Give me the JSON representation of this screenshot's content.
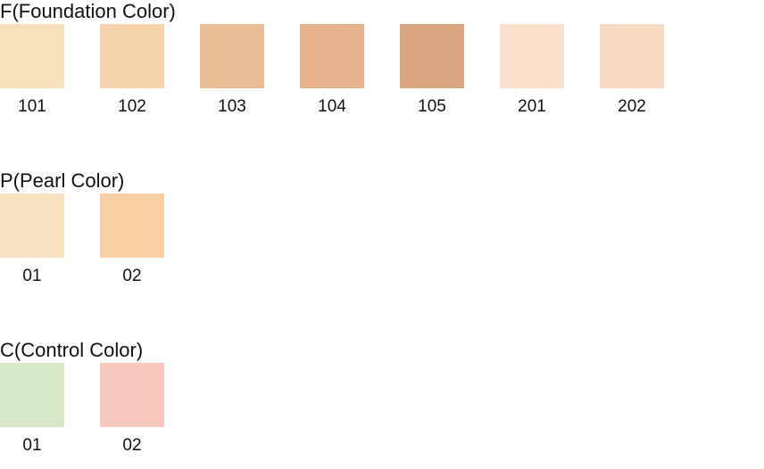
{
  "sections": [
    {
      "title": "F(Foundation Color)",
      "swatches": [
        {
          "label": "101",
          "color": "#f7e1bd"
        },
        {
          "label": "102",
          "color": "#f6d3aa"
        },
        {
          "label": "103",
          "color": "#e9bd95"
        },
        {
          "label": "104",
          "color": "#e6b38d"
        },
        {
          "label": "105",
          "color": "#daa682"
        },
        {
          "label": "201",
          "color": "#fae0cb"
        },
        {
          "label": "202",
          "color": "#f8d9c1"
        }
      ]
    },
    {
      "title": "P(Pearl Color)",
      "swatches": [
        {
          "label": "01",
          "color": "#f8e1bf"
        },
        {
          "label": "02",
          "color": "#f9d0a4"
        }
      ]
    },
    {
      "title": "C(Control Color)",
      "swatches": [
        {
          "label": "01",
          "color": "#d6e8c8"
        },
        {
          "label": "02",
          "color": "#f6c7bd"
        }
      ]
    }
  ]
}
